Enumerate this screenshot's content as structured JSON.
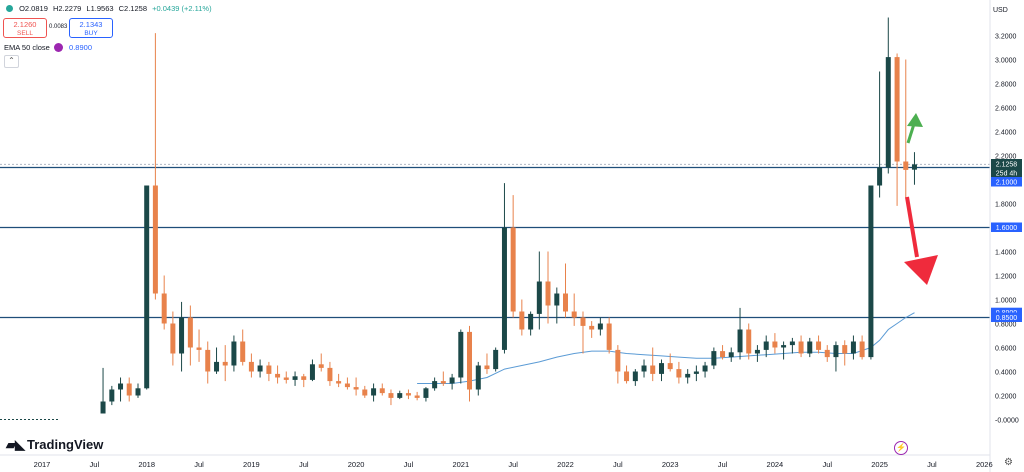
{
  "header": {
    "open": "O2.0819",
    "high": "H2.2279",
    "low": "L1.9563",
    "close": "C2.1258",
    "change": "+0.0439 (+2.11%)"
  },
  "trade": {
    "sell_price": "2.1260",
    "sell_label": "SELL",
    "spread": "0.0083",
    "buy_price": "2.1343",
    "buy_label": "BUY"
  },
  "indicator": {
    "name": "EMA 50 close",
    "value": "0.8900"
  },
  "currency": "USD",
  "branding": {
    "name": "TradingView"
  },
  "colors": {
    "up": "#1b4848",
    "down": "#e8824b",
    "ema": "#5b9bd5",
    "hline": "#1f4e79",
    "arrow_up": "#4caf50",
    "arrow_down": "#ef2b3c",
    "axis_tag": "#2962ff"
  },
  "chart_data": {
    "type": "candlestick",
    "interval": "monthly",
    "ylim": [
      -0.1,
      3.4
    ],
    "yticks": [
      3.2,
      3.0,
      2.8,
      2.6,
      2.4,
      2.2,
      2.0,
      1.8,
      1.6,
      1.4,
      1.2,
      1.0,
      0.8,
      0.6,
      0.4,
      0.2,
      0.0
    ],
    "ytick_labels": [
      "3.2000",
      "3.0000",
      "2.8000",
      "2.6000",
      "2.4000",
      "2.2000",
      "2.0000",
      "1.8000",
      "1.6000",
      "1.4000",
      "1.2000",
      "1.0000",
      "0.8000",
      "0.6000",
      "0.4000",
      "0.2000",
      "-0.0000"
    ],
    "xaxis_labels": [
      "2017",
      "Jul",
      "2018",
      "Jul",
      "2019",
      "Jul",
      "2020",
      "Jul",
      "2021",
      "Jul",
      "2022",
      "Jul",
      "2023",
      "Jul",
      "2024",
      "Jul",
      "2025",
      "Jul",
      "2026"
    ],
    "price_tags": [
      {
        "label": "2.1258",
        "value": 2.1258,
        "kind": "last"
      },
      {
        "label": "25d 4h",
        "value": 2.07,
        "kind": "countdown"
      },
      {
        "label": "2.1000",
        "value": 2.1,
        "kind": "line"
      },
      {
        "label": "1.6000",
        "value": 1.6,
        "kind": "line"
      },
      {
        "label": "0.8900",
        "value": 0.89,
        "kind": "ema"
      },
      {
        "label": "0.8500",
        "value": 0.85,
        "kind": "line"
      }
    ],
    "horizontal_lines": [
      2.1,
      1.6,
      0.85
    ],
    "last_price": 2.1258,
    "candles": [
      [
        2017.583,
        0.05,
        0.43,
        0.05,
        0.15
      ],
      [
        2017.667,
        0.15,
        0.28,
        0.12,
        0.25
      ],
      [
        2017.75,
        0.25,
        0.35,
        0.15,
        0.3
      ],
      [
        2017.833,
        0.3,
        0.35,
        0.15,
        0.2
      ],
      [
        2017.917,
        0.2,
        0.3,
        0.18,
        0.26
      ],
      [
        2018.0,
        0.26,
        1.95,
        0.25,
        1.95
      ],
      [
        2018.083,
        1.95,
        3.22,
        1.0,
        1.05
      ],
      [
        2018.167,
        1.05,
        1.2,
        0.75,
        0.8
      ],
      [
        2018.25,
        0.8,
        0.9,
        0.45,
        0.55
      ],
      [
        2018.333,
        0.55,
        0.98,
        0.4,
        0.85
      ],
      [
        2018.417,
        0.85,
        0.95,
        0.45,
        0.6
      ],
      [
        2018.5,
        0.6,
        0.75,
        0.48,
        0.58
      ],
      [
        2018.583,
        0.58,
        0.65,
        0.3,
        0.4
      ],
      [
        2018.667,
        0.4,
        0.6,
        0.38,
        0.48
      ],
      [
        2018.75,
        0.48,
        0.62,
        0.32,
        0.45
      ],
      [
        2018.833,
        0.45,
        0.7,
        0.4,
        0.65
      ],
      [
        2018.917,
        0.65,
        0.75,
        0.45,
        0.48
      ],
      [
        2019.0,
        0.48,
        0.55,
        0.35,
        0.4
      ],
      [
        2019.083,
        0.4,
        0.5,
        0.35,
        0.45
      ],
      [
        2019.167,
        0.45,
        0.48,
        0.32,
        0.38
      ],
      [
        2019.25,
        0.38,
        0.45,
        0.3,
        0.35
      ],
      [
        2019.333,
        0.35,
        0.4,
        0.3,
        0.33
      ],
      [
        2019.417,
        0.33,
        0.4,
        0.28,
        0.36
      ],
      [
        2019.5,
        0.36,
        0.38,
        0.27,
        0.33
      ],
      [
        2019.583,
        0.33,
        0.5,
        0.32,
        0.46
      ],
      [
        2019.667,
        0.46,
        0.55,
        0.4,
        0.43
      ],
      [
        2019.75,
        0.43,
        0.48,
        0.28,
        0.32
      ],
      [
        2019.833,
        0.32,
        0.38,
        0.27,
        0.3
      ],
      [
        2019.917,
        0.3,
        0.35,
        0.25,
        0.27
      ],
      [
        2020.0,
        0.27,
        0.35,
        0.2,
        0.25
      ],
      [
        2020.083,
        0.25,
        0.28,
        0.18,
        0.2
      ],
      [
        2020.167,
        0.2,
        0.3,
        0.15,
        0.26
      ],
      [
        2020.25,
        0.26,
        0.3,
        0.2,
        0.22
      ],
      [
        2020.333,
        0.22,
        0.25,
        0.12,
        0.18
      ],
      [
        2020.417,
        0.18,
        0.24,
        0.17,
        0.22
      ],
      [
        2020.5,
        0.22,
        0.25,
        0.17,
        0.2
      ],
      [
        2020.583,
        0.2,
        0.23,
        0.16,
        0.18
      ],
      [
        2020.667,
        0.18,
        0.27,
        0.15,
        0.26
      ],
      [
        2020.75,
        0.26,
        0.35,
        0.24,
        0.32
      ],
      [
        2020.833,
        0.32,
        0.4,
        0.28,
        0.3
      ],
      [
        2020.917,
        0.3,
        0.38,
        0.25,
        0.35
      ],
      [
        2021.0,
        0.35,
        0.75,
        0.3,
        0.73
      ],
      [
        2021.083,
        0.73,
        0.78,
        0.15,
        0.25
      ],
      [
        2021.167,
        0.25,
        0.48,
        0.2,
        0.45
      ],
      [
        2021.25,
        0.45,
        0.55,
        0.38,
        0.42
      ],
      [
        2021.333,
        0.42,
        0.6,
        0.4,
        0.58
      ],
      [
        2021.417,
        0.58,
        1.97,
        0.55,
        1.6
      ],
      [
        2021.5,
        1.6,
        1.87,
        0.85,
        0.9
      ],
      [
        2021.583,
        0.9,
        1.0,
        0.7,
        0.75
      ],
      [
        2021.667,
        0.75,
        0.9,
        0.7,
        0.88
      ],
      [
        2021.75,
        0.88,
        1.4,
        0.75,
        1.15
      ],
      [
        2021.833,
        1.15,
        1.4,
        0.8,
        0.95
      ],
      [
        2021.917,
        0.95,
        1.1,
        0.8,
        1.05
      ],
      [
        2022.0,
        1.05,
        1.3,
        0.85,
        0.9
      ],
      [
        2022.083,
        0.9,
        1.05,
        0.78,
        0.85
      ],
      [
        2022.167,
        0.85,
        0.9,
        0.55,
        0.78
      ],
      [
        2022.25,
        0.78,
        0.82,
        0.68,
        0.75
      ],
      [
        2022.333,
        0.75,
        0.85,
        0.7,
        0.8
      ],
      [
        2022.417,
        0.8,
        0.85,
        0.55,
        0.58
      ],
      [
        2022.5,
        0.58,
        0.62,
        0.3,
        0.4
      ],
      [
        2022.583,
        0.4,
        0.45,
        0.3,
        0.32
      ],
      [
        2022.667,
        0.32,
        0.42,
        0.28,
        0.4
      ],
      [
        2022.75,
        0.4,
        0.5,
        0.35,
        0.45
      ],
      [
        2022.833,
        0.45,
        0.6,
        0.32,
        0.38
      ],
      [
        2022.917,
        0.38,
        0.5,
        0.32,
        0.47
      ],
      [
        2023.0,
        0.47,
        0.55,
        0.4,
        0.42
      ],
      [
        2023.083,
        0.42,
        0.48,
        0.3,
        0.35
      ],
      [
        2023.167,
        0.35,
        0.42,
        0.3,
        0.38
      ],
      [
        2023.25,
        0.38,
        0.45,
        0.32,
        0.4
      ],
      [
        2023.333,
        0.4,
        0.48,
        0.35,
        0.45
      ],
      [
        2023.417,
        0.45,
        0.6,
        0.42,
        0.57
      ],
      [
        2023.5,
        0.57,
        0.62,
        0.5,
        0.52
      ],
      [
        2023.583,
        0.52,
        0.6,
        0.48,
        0.56
      ],
      [
        2023.667,
        0.56,
        0.93,
        0.5,
        0.75
      ],
      [
        2023.75,
        0.75,
        0.8,
        0.5,
        0.55
      ],
      [
        2023.833,
        0.55,
        0.62,
        0.48,
        0.58
      ],
      [
        2023.917,
        0.58,
        0.7,
        0.52,
        0.65
      ],
      [
        2024.0,
        0.65,
        0.72,
        0.55,
        0.6
      ],
      [
        2024.083,
        0.6,
        0.65,
        0.5,
        0.62
      ],
      [
        2024.167,
        0.62,
        0.68,
        0.55,
        0.65
      ],
      [
        2024.25,
        0.65,
        0.7,
        0.52,
        0.55
      ],
      [
        2024.333,
        0.55,
        0.68,
        0.52,
        0.65
      ],
      [
        2024.417,
        0.65,
        0.7,
        0.55,
        0.58
      ],
      [
        2024.5,
        0.58,
        0.62,
        0.48,
        0.52
      ],
      [
        2024.583,
        0.52,
        0.65,
        0.4,
        0.62
      ],
      [
        2024.667,
        0.62,
        0.66,
        0.45,
        0.55
      ],
      [
        2024.75,
        0.55,
        0.7,
        0.5,
        0.65
      ],
      [
        2024.833,
        0.65,
        0.7,
        0.5,
        0.52
      ],
      [
        2024.917,
        0.52,
        1.95,
        0.5,
        1.95
      ],
      [
        2025.0,
        1.95,
        2.9,
        1.85,
        2.1
      ],
      [
        2025.083,
        2.1,
        3.35,
        2.05,
        3.02
      ],
      [
        2025.167,
        3.02,
        3.05,
        1.78,
        2.15
      ],
      [
        2025.25,
        2.15,
        3.0,
        1.85,
        2.08
      ],
      [
        2025.333,
        2.0819,
        2.2279,
        1.9563,
        2.1258
      ]
    ],
    "ema": [
      [
        2020.583,
        0.3
      ],
      [
        2020.75,
        0.3
      ],
      [
        2020.917,
        0.3
      ],
      [
        2021.083,
        0.32
      ],
      [
        2021.25,
        0.35
      ],
      [
        2021.417,
        0.42
      ],
      [
        2021.583,
        0.45
      ],
      [
        2021.75,
        0.48
      ],
      [
        2021.917,
        0.52
      ],
      [
        2022.083,
        0.55
      ],
      [
        2022.25,
        0.57
      ],
      [
        2022.417,
        0.57
      ],
      [
        2022.583,
        0.55
      ],
      [
        2022.75,
        0.54
      ],
      [
        2022.917,
        0.53
      ],
      [
        2023.083,
        0.52
      ],
      [
        2023.25,
        0.51
      ],
      [
        2023.417,
        0.51
      ],
      [
        2023.583,
        0.52
      ],
      [
        2023.75,
        0.53
      ],
      [
        2023.917,
        0.54
      ],
      [
        2024.083,
        0.55
      ],
      [
        2024.25,
        0.56
      ],
      [
        2024.417,
        0.56
      ],
      [
        2024.583,
        0.55
      ],
      [
        2024.75,
        0.55
      ],
      [
        2024.917,
        0.6
      ],
      [
        2025.0,
        0.66
      ],
      [
        2025.083,
        0.75
      ],
      [
        2025.167,
        0.8
      ],
      [
        2025.25,
        0.85
      ],
      [
        2025.333,
        0.89
      ]
    ]
  }
}
